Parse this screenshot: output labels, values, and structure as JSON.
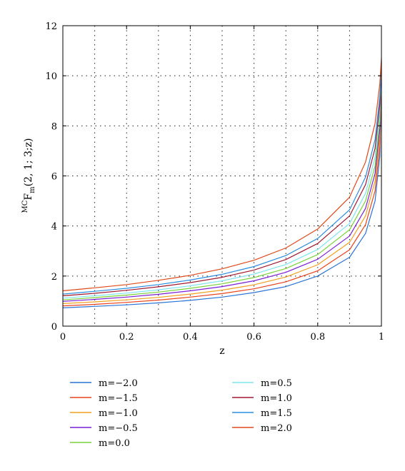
{
  "chart_data": {
    "type": "line",
    "title": "",
    "xlabel": "z",
    "ylabel": {
      "superscript": "MC",
      "base": "F",
      "subscript": "m",
      "args": "(2, 1; 3;z)"
    },
    "xlim": [
      0,
      1
    ],
    "ylim": [
      0,
      12
    ],
    "x_ticks": [
      "0",
      "0.2",
      "0.4",
      "0.6",
      "0.8",
      "1"
    ],
    "y_ticks": [
      "0",
      "2",
      "4",
      "6",
      "8",
      "10",
      "12"
    ],
    "grid": true,
    "legend_position": "bottom",
    "x": [
      0,
      0.1,
      0.2,
      0.3,
      0.4,
      0.5,
      0.6,
      0.7,
      0.8,
      0.9,
      0.95,
      0.98,
      0.995,
      1.0
    ],
    "series": [
      {
        "name": "m=−2.0",
        "color": "#2b74d6",
        "values": [
          0.73,
          0.79,
          0.85,
          0.93,
          1.03,
          1.16,
          1.34,
          1.58,
          2.0,
          2.75,
          3.7,
          5.0,
          6.8,
          9.7
        ]
      },
      {
        "name": "m=−1.5",
        "color": "#e8441e",
        "values": [
          0.81,
          0.87,
          0.95,
          1.04,
          1.16,
          1.3,
          1.49,
          1.77,
          2.21,
          3.05,
          4.05,
          5.4,
          7.2,
          10.1
        ]
      },
      {
        "name": "m=−1.0",
        "color": "#f0a020",
        "values": [
          0.9,
          0.97,
          1.05,
          1.15,
          1.28,
          1.44,
          1.65,
          1.96,
          2.45,
          3.35,
          4.4,
          5.8,
          7.6,
          10.3
        ]
      },
      {
        "name": "m=−0.5",
        "color": "#7a1fd6",
        "values": [
          0.99,
          1.07,
          1.16,
          1.27,
          1.41,
          1.58,
          1.81,
          2.15,
          2.67,
          3.6,
          4.7,
          6.1,
          7.9,
          10.2
        ]
      },
      {
        "name": "m=0.0",
        "color": "#78d23c",
        "values": [
          1.05,
          1.14,
          1.24,
          1.36,
          1.51,
          1.69,
          1.94,
          2.3,
          2.86,
          3.85,
          5.0,
          6.4,
          8.2,
          10.4
        ]
      },
      {
        "name": "m=0.5",
        "color": "#7fe3ef",
        "values": [
          1.12,
          1.21,
          1.32,
          1.45,
          1.61,
          1.81,
          2.08,
          2.46,
          3.06,
          4.1,
          5.3,
          6.75,
          8.55,
          10.6
        ]
      },
      {
        "name": "m=1.0",
        "color": "#a01830",
        "values": [
          1.21,
          1.31,
          1.43,
          1.57,
          1.74,
          1.95,
          2.24,
          2.66,
          3.3,
          4.4,
          5.65,
          7.1,
          8.85,
          10.5
        ]
      },
      {
        "name": "m=1.5",
        "color": "#2a8de0",
        "values": [
          1.28,
          1.39,
          1.51,
          1.66,
          1.84,
          2.07,
          2.38,
          2.82,
          3.5,
          4.65,
          5.95,
          7.45,
          9.2,
          10.2
        ]
      },
      {
        "name": "m=2.0",
        "color": "#e04a1a",
        "values": [
          1.41,
          1.53,
          1.66,
          1.83,
          2.03,
          2.29,
          2.63,
          3.12,
          3.88,
          5.15,
          6.55,
          8.1,
          9.7,
          10.7
        ]
      }
    ]
  }
}
